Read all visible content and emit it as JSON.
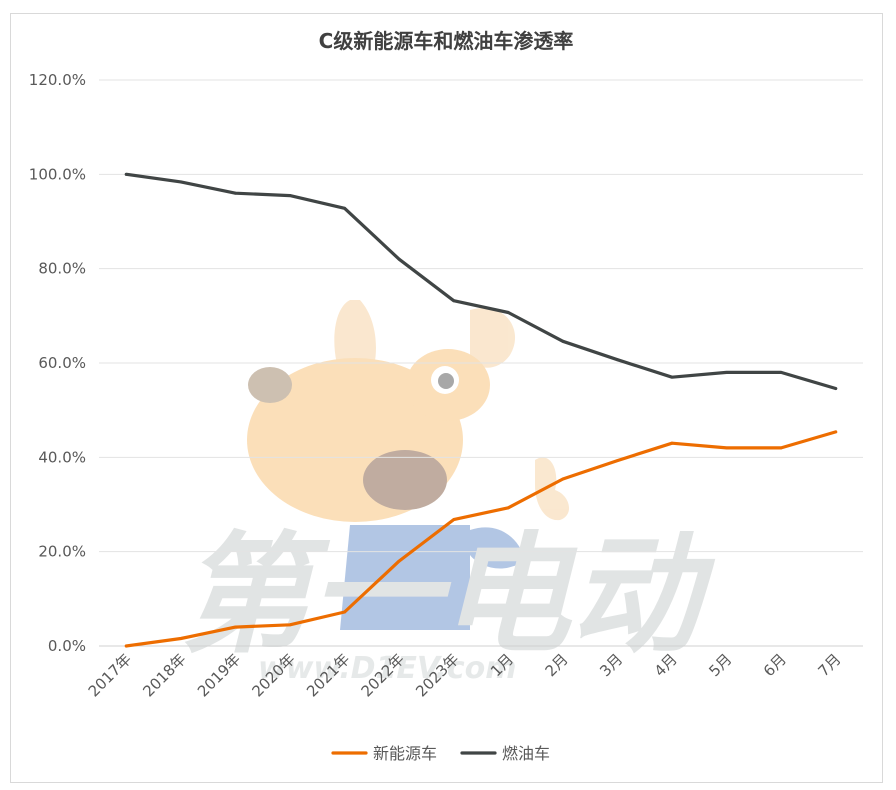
{
  "chart_data": {
    "type": "line",
    "title": "C级新能源车和燃油车渗透率",
    "categories": [
      "2017年",
      "2018年",
      "2019年",
      "2020年",
      "2021年",
      "2022年",
      "2023年",
      "1月",
      "2月",
      "3月",
      "4月",
      "5月",
      "6月",
      "7月"
    ],
    "y_ticks": [
      "0.0%",
      "20.0%",
      "40.0%",
      "60.0%",
      "80.0%",
      "100.0%",
      "120.0%"
    ],
    "ylim": [
      0,
      120
    ],
    "grid": true,
    "legend_position": "bottom",
    "series": [
      {
        "name": "新能源车",
        "color": "#ed6d00",
        "values": [
          0.0,
          1.6,
          4.0,
          4.5,
          7.2,
          18.0,
          26.8,
          29.3,
          35.4,
          39.3,
          43.0,
          42.0,
          42.0,
          45.4
        ]
      },
      {
        "name": "燃油车",
        "color": "#404545",
        "values": [
          100.0,
          98.4,
          96.0,
          95.5,
          92.8,
          82.0,
          73.2,
          70.7,
          64.6,
          60.7,
          57.0,
          58.0,
          58.0,
          54.6
        ]
      }
    ]
  },
  "watermark": {
    "text_cn": "第一电动",
    "text_url": "www.D1EV.com"
  }
}
